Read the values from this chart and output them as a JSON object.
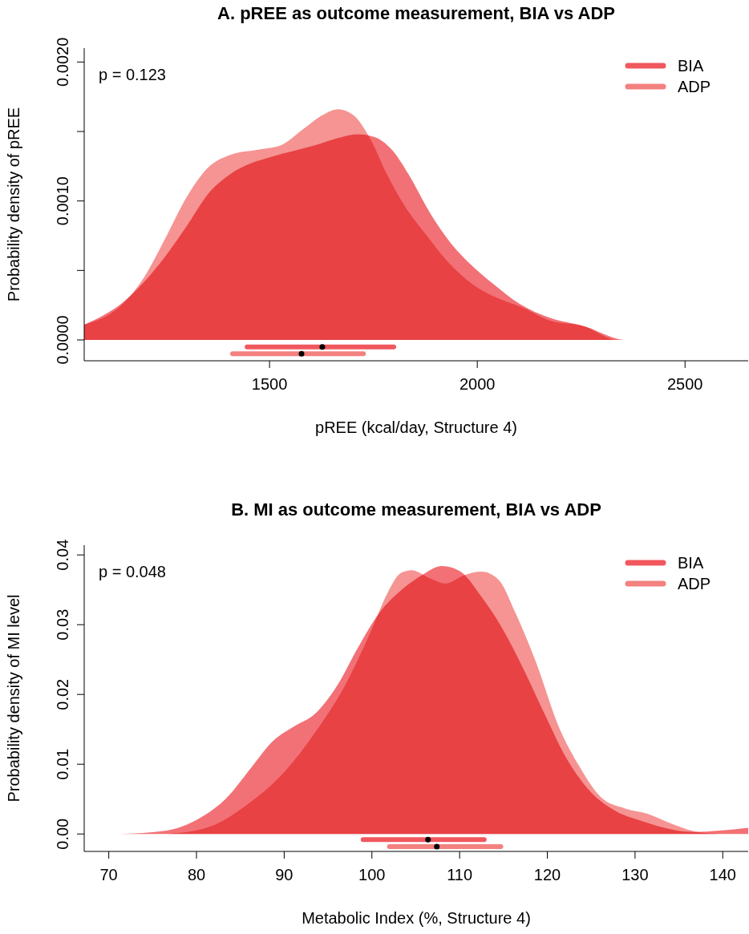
{
  "chart_data": [
    {
      "type": "area",
      "title": "A. pREE as outcome measurement, BIA vs ADP",
      "xlabel": "pREE (kcal/day, Structure 4)",
      "ylabel": "Probability density of pREE",
      "annotations": [
        "p = 0.123"
      ],
      "xlim": [
        1054,
        2652
      ],
      "ylim": [
        -0.00015,
        0.0021
      ],
      "xticks": [
        1500,
        2000,
        2500
      ],
      "yticks": [
        {
          "value": 0,
          "label": "0.0000"
        },
        {
          "value": 0.0005,
          "label": null
        },
        {
          "value": 0.001,
          "label": "0.0010"
        },
        {
          "value": 0.0015,
          "label": null
        },
        {
          "value": 0.002,
          "label": "0.0020"
        }
      ],
      "legend": "top right",
      "grid": false,
      "series": [
        {
          "name": "BIA",
          "color": "#f0585e",
          "x": [
            1054,
            1147,
            1249,
            1301,
            1352,
            1404,
            1455,
            1507,
            1558,
            1609,
            1661,
            1712,
            1753,
            1794,
            1835,
            1887,
            1938,
            1989,
            2040,
            2102,
            2174,
            2256,
            2358,
            2471,
            2652
          ],
          "values": [
            0.00011,
            0.00027,
            0.0006,
            0.00082,
            0.00105,
            0.00119,
            0.00127,
            0.00132,
            0.00136,
            0.0014,
            0.00145,
            0.00148,
            0.00146,
            0.00137,
            0.00119,
            0.00091,
            0.00069,
            0.00053,
            0.0004,
            0.00026,
            0.00016,
            0.0001,
            0,
            0,
            0
          ]
        },
        {
          "name": "ADP",
          "color": "#f3817f",
          "x": [
            1054,
            1147,
            1198,
            1249,
            1301,
            1352,
            1404,
            1475,
            1527,
            1578,
            1629,
            1665,
            1701,
            1742,
            1783,
            1824,
            1876,
            1927,
            1989,
            2050,
            2112,
            2174,
            2256,
            2337,
            2419,
            2652
          ],
          "values": [
            0.00011,
            0.00026,
            0.00045,
            0.00073,
            0.00103,
            0.00124,
            0.00133,
            0.00137,
            0.0014,
            0.00151,
            0.00162,
            0.00166,
            0.00162,
            0.00145,
            0.00119,
            0.00097,
            0.00076,
            0.00057,
            0.0004,
            0.0003,
            0.00023,
            0.00014,
            0.0001,
            0,
            0,
            0
          ]
        },
        {
          "type": "scatter",
          "color": "#000000",
          "marker": "circle",
          "x": [
            1627
          ],
          "values": [
            -5e-05
          ],
          "xerrors": [
            [
              1446,
              1799
            ]
          ]
        },
        {
          "type": "scatter",
          "color": "#000000",
          "marker": "circle",
          "x": [
            1577
          ],
          "values": [
            -0.0001
          ],
          "xerrors": [
            [
              1411,
              1726
            ]
          ]
        }
      ]
    },
    {
      "type": "area",
      "title": "B. MI as outcome measurement, BIA vs ADP",
      "xlabel": "Metabolic Index (%, Structure 4)",
      "ylabel": "Probability density of MI level",
      "annotations": [
        "p = 0.048"
      ],
      "xlim": [
        67.2,
        142.9
      ],
      "ylim": [
        -0.0025,
        0.0414
      ],
      "xticks": [
        70,
        80,
        90,
        100,
        110,
        120,
        130,
        140
      ],
      "yticks": [
        {
          "value": 0,
          "label": "0.00"
        },
        0.01,
        0.02,
        0.03,
        0.04
      ],
      "legend": "top right",
      "grid": false,
      "series": [
        {
          "name": "BIA",
          "color": "#f0585e",
          "x": [
            71.2,
            76.6,
            80.4,
            83.3,
            86.3,
            88.7,
            91.1,
            93.5,
            96.0,
            98.4,
            100.8,
            103.3,
            105.7,
            108.0,
            110.0,
            112.5,
            114.9,
            117.3,
            119.8,
            122.2,
            124.6,
            127.5,
            130.9,
            134.8,
            136.7,
            139.7,
            142.9
          ],
          "values": [
            0,
            0.0005,
            0.0023,
            0.005,
            0.0096,
            0.0133,
            0.0154,
            0.0172,
            0.0212,
            0.0267,
            0.0316,
            0.0349,
            0.0371,
            0.0384,
            0.0377,
            0.034,
            0.0294,
            0.0236,
            0.0169,
            0.0108,
            0.0065,
            0.0035,
            0.0018,
            0.0005,
            0.0003,
            0.0005,
            0.0009
          ]
        },
        {
          "name": "ADP",
          "color": "#f3817f",
          "x": [
            76.6,
            81.4,
            86.3,
            90.1,
            93.5,
            96.9,
            99.9,
            101.8,
            103.3,
            104.5,
            106.7,
            108.4,
            110.5,
            112.5,
            114.4,
            116.4,
            118.8,
            121.2,
            123.7,
            126.1,
            129.0,
            131.4,
            133.9,
            136.7,
            139.7
          ],
          "values": [
            0,
            0.001,
            0.0047,
            0.009,
            0.0145,
            0.0212,
            0.0291,
            0.0346,
            0.0374,
            0.0378,
            0.0366,
            0.0359,
            0.0371,
            0.0376,
            0.0365,
            0.0316,
            0.0243,
            0.0157,
            0.0096,
            0.0053,
            0.0036,
            0.0029,
            0.0016,
            0.0004,
            0
          ]
        },
        {
          "type": "scatter",
          "color": "#000000",
          "marker": "circle",
          "x": [
            106.4
          ],
          "values": [
            -0.0008
          ],
          "xerrors": [
            [
              99.0,
              112.8
            ]
          ]
        },
        {
          "type": "scatter",
          "color": "#000000",
          "marker": "circle",
          "x": [
            107.4
          ],
          "values": [
            -0.0018
          ],
          "xerrors": [
            [
              102.0,
              114.7
            ]
          ]
        }
      ]
    }
  ]
}
